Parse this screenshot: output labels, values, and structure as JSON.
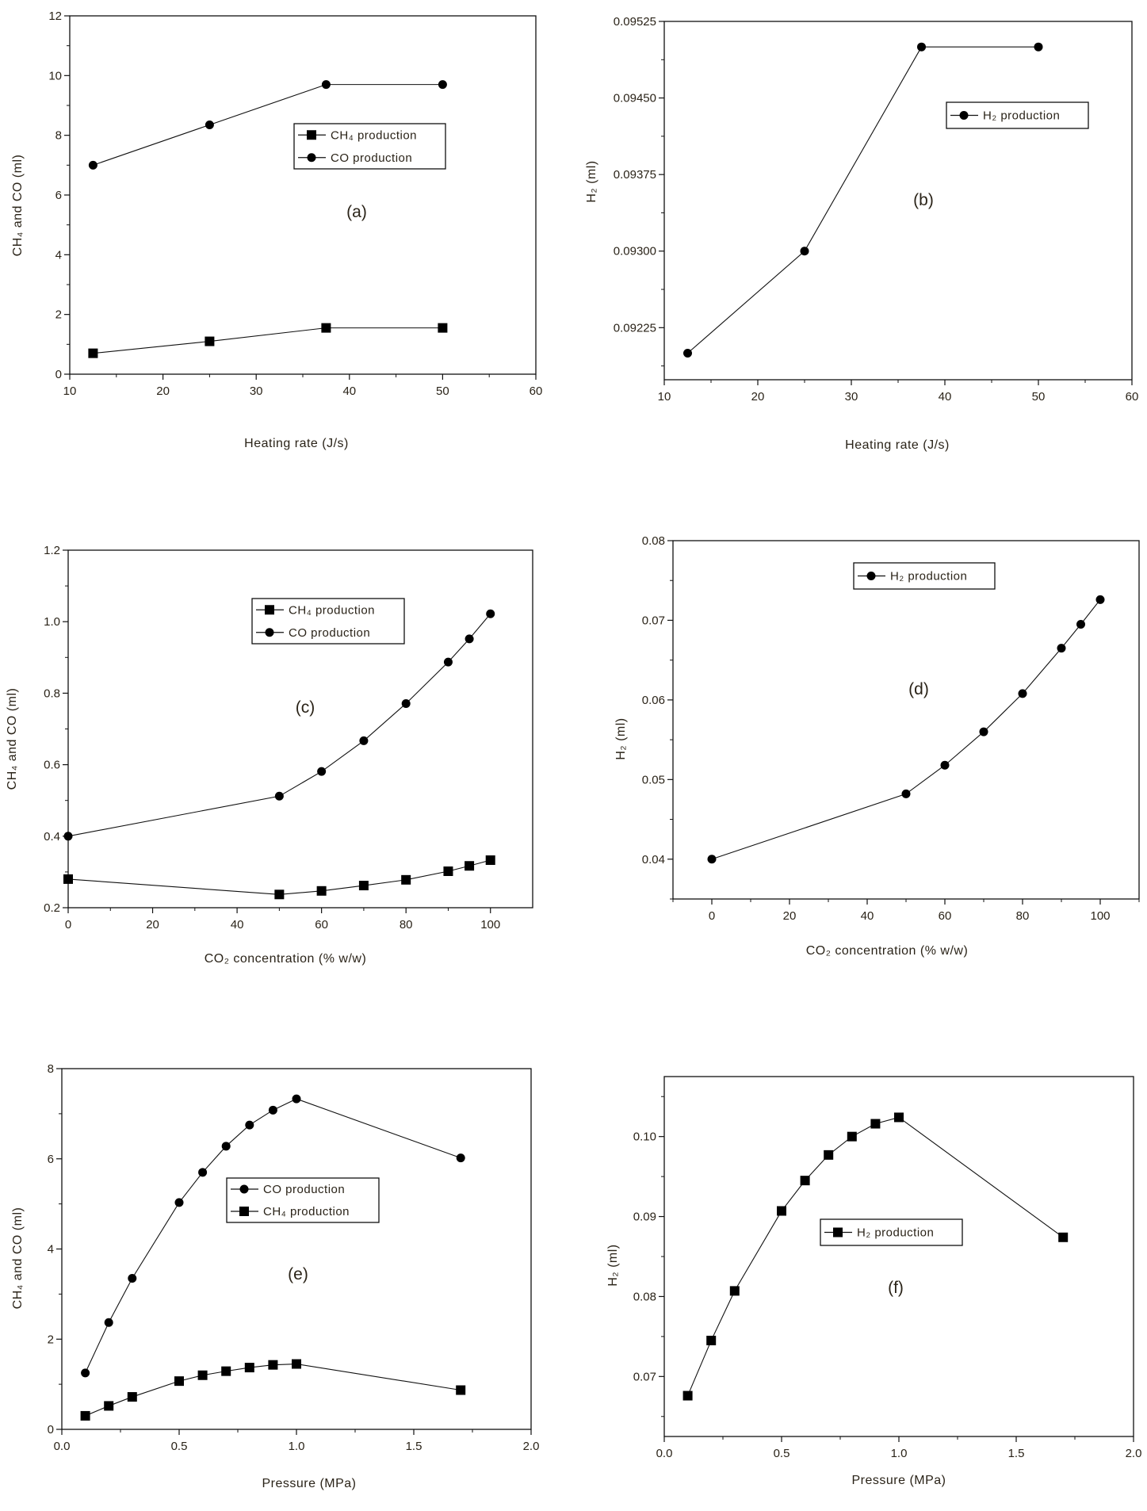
{
  "chart_data": [
    {
      "type": "line",
      "panel_label": "(a)",
      "xlabel": "Heating rate (J/s)",
      "ylabel": "CH₄ and CO (ml)",
      "xlim": [
        10,
        60
      ],
      "ylim": [
        0,
        12
      ],
      "xticks": [
        10,
        20,
        30,
        40,
        50,
        60
      ],
      "xtick_labels": [
        "10",
        "20",
        "30",
        "40",
        "50",
        "60"
      ],
      "yticks": [
        0,
        2,
        4,
        6,
        8,
        10,
        12
      ],
      "ytick_labels": [
        "0",
        "2",
        "4",
        "6",
        "8",
        "10",
        "12"
      ],
      "xminor": [
        15,
        25,
        35,
        45,
        55
      ],
      "yminor": [
        1,
        3,
        5,
        7,
        9,
        11
      ],
      "legend_position": "upper-center",
      "series": [
        {
          "name": "CH₄ production",
          "marker": "square",
          "x": [
            12.5,
            25,
            37.5,
            50
          ],
          "y": [
            0.7,
            1.1,
            1.55,
            1.55
          ]
        },
        {
          "name": "CO production",
          "marker": "circle",
          "x": [
            12.5,
            25,
            37.5,
            50
          ],
          "y": [
            7.0,
            8.35,
            9.7,
            9.7
          ]
        }
      ]
    },
    {
      "type": "line",
      "panel_label": "(b)",
      "xlabel": "Heating rate (J/s)",
      "ylabel": "H₂ (ml)",
      "xlim": [
        10,
        60
      ],
      "ylim": [
        0.09174,
        0.09525
      ],
      "xticks": [
        10,
        20,
        30,
        40,
        50,
        60
      ],
      "xtick_labels": [
        "10",
        "20",
        "30",
        "40",
        "50",
        "60"
      ],
      "yticks": [
        0.09225,
        0.093,
        0.09375,
        0.0945,
        0.09525
      ],
      "ytick_labels": [
        "0.09225",
        "0.09300",
        "0.09375",
        "0.09450",
        "0.09525"
      ],
      "xminor": [
        15,
        25,
        35,
        45,
        55
      ],
      "yminor": [
        0.091875,
        0.092625,
        0.093375,
        0.094125,
        0.094875
      ],
      "legend_position": "upper-right",
      "series": [
        {
          "name": "H₂ production",
          "marker": "circle",
          "x": [
            12.5,
            25,
            37.5,
            50
          ],
          "y": [
            0.092,
            0.093,
            0.095,
            0.095
          ]
        }
      ]
    },
    {
      "type": "line",
      "panel_label": "(c)",
      "xlabel": "CO₂ concentration (% w/w)",
      "ylabel": "CH₄ and CO (ml)",
      "xlim": [
        0,
        110
      ],
      "ylim": [
        0.2,
        1.2
      ],
      "xticks": [
        0,
        20,
        40,
        60,
        80,
        100
      ],
      "xtick_labels": [
        "0",
        "20",
        "40",
        "60",
        "80",
        "100"
      ],
      "yticks": [
        0.2,
        0.4,
        0.6,
        0.8,
        1.0,
        1.2
      ],
      "ytick_labels": [
        "0.2",
        "0.4",
        "0.6",
        "0.8",
        "1.0",
        "1.2"
      ],
      "xminor": [
        10,
        30,
        50,
        70,
        90
      ],
      "yminor": [
        0.3,
        0.5,
        0.7,
        0.9,
        1.1
      ],
      "legend_position": "upper-center",
      "series": [
        {
          "name": "CH₄ production",
          "marker": "square",
          "x": [
            0,
            50,
            60,
            70,
            80,
            90,
            95,
            100
          ],
          "y": [
            0.28,
            0.237,
            0.247,
            0.262,
            0.278,
            0.302,
            0.317,
            0.333
          ]
        },
        {
          "name": "CO production",
          "marker": "circle",
          "x": [
            0,
            50,
            60,
            70,
            80,
            90,
            95,
            100
          ],
          "y": [
            0.4,
            0.512,
            0.581,
            0.667,
            0.771,
            0.887,
            0.952,
            1.022
          ]
        }
      ]
    },
    {
      "type": "line",
      "panel_label": "(d)",
      "xlabel": "CO₂ concentration (% w/w)",
      "ylabel": "H₂ (ml)",
      "xlim": [
        -10,
        110
      ],
      "ylim": [
        0.035,
        0.08
      ],
      "xticks": [
        0,
        20,
        40,
        60,
        80,
        100
      ],
      "xtick_labels": [
        "0",
        "20",
        "40",
        "60",
        "80",
        "100"
      ],
      "yticks": [
        0.04,
        0.05,
        0.06,
        0.07,
        0.08
      ],
      "ytick_labels": [
        "0.04",
        "0.05",
        "0.06",
        "0.07",
        "0.08"
      ],
      "xminor": [
        -10,
        10,
        30,
        50,
        70,
        90,
        110
      ],
      "yminor": [
        0.035,
        0.045,
        0.055,
        0.065,
        0.075
      ],
      "legend_position": "upper-center",
      "series": [
        {
          "name": "H₂ production",
          "marker": "circle",
          "x": [
            0,
            50,
            60,
            70,
            80,
            90,
            95,
            100
          ],
          "y": [
            0.04,
            0.0482,
            0.0518,
            0.056,
            0.0608,
            0.0665,
            0.0695,
            0.0726
          ]
        }
      ]
    },
    {
      "type": "line",
      "panel_label": "(e)",
      "xlabel": "Pressure (MPa)",
      "ylabel": "CH₄ and CO (ml)",
      "xlim": [
        0,
        2
      ],
      "ylim": [
        0,
        8
      ],
      "xticks": [
        0,
        0.5,
        1.0,
        1.5,
        2.0
      ],
      "xtick_labels": [
        "0.0",
        "0.5",
        "1.0",
        "1.5",
        "2.0"
      ],
      "yticks": [
        0,
        2,
        4,
        6,
        8
      ],
      "ytick_labels": [
        "0",
        "2",
        "4",
        "6",
        "8"
      ],
      "xminor": [
        0.25,
        0.75,
        1.25,
        1.75
      ],
      "yminor": [
        1,
        3,
        5,
        7
      ],
      "legend_position": "center",
      "series": [
        {
          "name": "CO production",
          "marker": "circle",
          "x": [
            0.1,
            0.2,
            0.3,
            0.5,
            0.6,
            0.7,
            0.8,
            0.9,
            1.0,
            1.7
          ],
          "y": [
            1.25,
            2.37,
            3.35,
            5.03,
            5.7,
            6.28,
            6.75,
            7.08,
            7.33,
            6.02
          ]
        },
        {
          "name": "CH₄ production",
          "marker": "square",
          "x": [
            0.1,
            0.2,
            0.3,
            0.5,
            0.6,
            0.7,
            0.8,
            0.9,
            1.0,
            1.7
          ],
          "y": [
            0.3,
            0.52,
            0.72,
            1.07,
            1.2,
            1.29,
            1.37,
            1.43,
            1.45,
            0.87
          ]
        }
      ]
    },
    {
      "type": "line",
      "panel_label": "(f)",
      "xlabel": "Pressure (MPa)",
      "ylabel": "H₂ (ml)",
      "xlim": [
        0,
        2
      ],
      "ylim": [
        0.0625,
        0.1075
      ],
      "xticks": [
        0,
        0.5,
        1.0,
        1.5,
        2.0
      ],
      "xtick_labels": [
        "0.0",
        "0.5",
        "1.0",
        "1.5",
        "2.0"
      ],
      "yticks": [
        0.07,
        0.08,
        0.09,
        0.1
      ],
      "ytick_labels": [
        "0.07",
        "0.08",
        "0.09",
        "0.10"
      ],
      "xminor": [
        0.25,
        0.75,
        1.25,
        1.75
      ],
      "yminor": [
        0.065,
        0.075,
        0.085,
        0.095,
        0.105
      ],
      "legend_position": "center",
      "series": [
        {
          "name": "H₂ production",
          "marker": "square",
          "x": [
            0.1,
            0.2,
            0.3,
            0.5,
            0.6,
            0.7,
            0.8,
            0.9,
            1.0,
            1.7
          ],
          "y": [
            0.0676,
            0.0745,
            0.0807,
            0.0907,
            0.0945,
            0.0977,
            0.1,
            0.1016,
            0.1024,
            0.0874
          ]
        }
      ]
    }
  ]
}
